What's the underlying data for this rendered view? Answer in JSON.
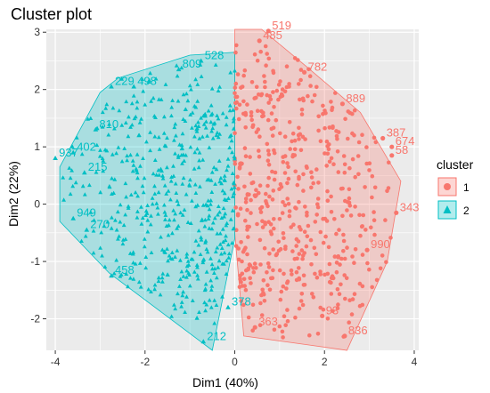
{
  "chart_data": {
    "type": "scatter",
    "title": "Cluster plot",
    "xlabel": "Dim1 (40%)",
    "ylabel": "Dim2 (22%)",
    "xlim": [
      -4.2,
      4.1
    ],
    "ylim": [
      -2.55,
      3.05
    ],
    "x_ticks": [
      -4,
      -2,
      0,
      2,
      4
    ],
    "x_tick_labels": [
      "-4",
      "-2",
      "0",
      "2",
      "4"
    ],
    "y_ticks": [
      -2,
      -1,
      0,
      1,
      2,
      3
    ],
    "y_tick_labels": [
      "-2",
      "-1",
      "0",
      "1",
      "2",
      "3"
    ],
    "grid": true,
    "legend": {
      "title": "cluster",
      "placement": "right",
      "entries": [
        "1",
        "2"
      ]
    },
    "colors": {
      "cluster1": "#F8766D",
      "cluster2": "#00BFC4",
      "panel": "#EBEBEB",
      "grid": "#FFFFFF"
    },
    "series": [
      {
        "name": "1",
        "marker": "circle",
        "hull": [
          [
            0,
            3.05
          ],
          [
            0.6,
            3.05
          ],
          [
            1.6,
            2.4
          ],
          [
            2.8,
            1.6
          ],
          [
            3.7,
            0.4
          ],
          [
            3.4,
            -1.0
          ],
          [
            2.5,
            -2.55
          ],
          [
            1.6,
            -2.45
          ],
          [
            0.2,
            -2.3
          ],
          [
            0,
            -0.5
          ]
        ],
        "labeled_points": [
          {
            "x": 0.75,
            "y": 3.02,
            "label": "519"
          },
          {
            "x": 0.55,
            "y": 2.85,
            "label": "485"
          },
          {
            "x": 1.55,
            "y": 2.3,
            "label": "782"
          },
          {
            "x": 2.4,
            "y": 1.75,
            "label": "889"
          },
          {
            "x": 3.3,
            "y": 1.15,
            "label": "387"
          },
          {
            "x": 3.5,
            "y": 1.0,
            "label": "674"
          },
          {
            "x": 3.5,
            "y": 0.85,
            "label": "58"
          },
          {
            "x": 3.6,
            "y": -0.15,
            "label": "343"
          },
          {
            "x": 2.95,
            "y": -0.8,
            "label": "990"
          },
          {
            "x": 1.95,
            "y": -1.95,
            "label": "93"
          },
          {
            "x": 2.45,
            "y": -2.3,
            "label": "836"
          },
          {
            "x": 0.45,
            "y": -2.15,
            "label": "363"
          }
        ]
      },
      {
        "name": "2",
        "marker": "triangle",
        "hull": [
          [
            -3.9,
            0.65
          ],
          [
            -3.0,
            1.95
          ],
          [
            -2.6,
            2.2
          ],
          [
            -1.0,
            2.6
          ],
          [
            0,
            2.65
          ],
          [
            0,
            -0.6
          ],
          [
            -0.5,
            -2.55
          ],
          [
            -2.8,
            -1.2
          ],
          [
            -3.9,
            -0.3
          ]
        ],
        "labeled_points": [
          {
            "x": -2.75,
            "y": 2.05,
            "label": "229"
          },
          {
            "x": -2.25,
            "y": 2.05,
            "label": "498"
          },
          {
            "x": -1.25,
            "y": 2.35,
            "label": "809"
          },
          {
            "x": -0.75,
            "y": 2.5,
            "label": "528"
          },
          {
            "x": -3.1,
            "y": 1.3,
            "label": "810"
          },
          {
            "x": -3.6,
            "y": 0.9,
            "label": "402"
          },
          {
            "x": -4.0,
            "y": 0.8,
            "label": "937"
          },
          {
            "x": -3.35,
            "y": 0.55,
            "label": "215"
          },
          {
            "x": -3.6,
            "y": -0.25,
            "label": "949"
          },
          {
            "x": -3.3,
            "y": -0.45,
            "label": "270"
          },
          {
            "x": -2.75,
            "y": -1.25,
            "label": "458"
          },
          {
            "x": -0.7,
            "y": -2.4,
            "label": "212"
          },
          {
            "x": -0.15,
            "y": -1.8,
            "label": "378"
          }
        ]
      }
    ]
  }
}
